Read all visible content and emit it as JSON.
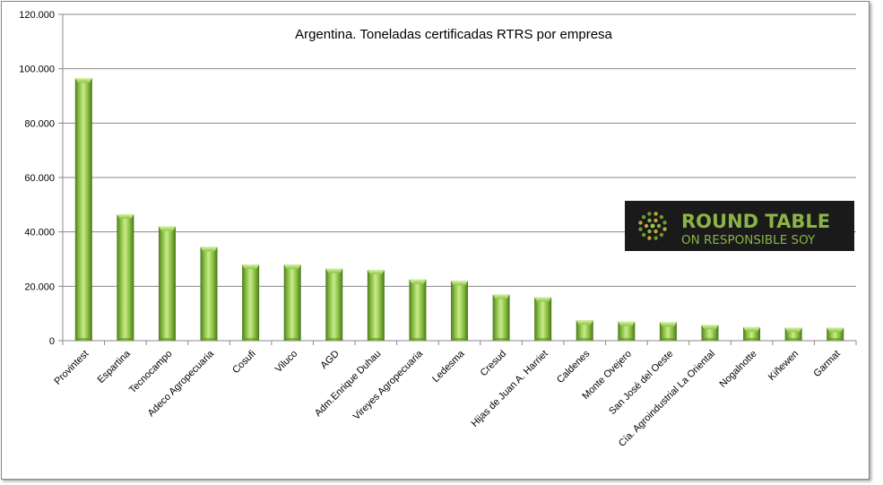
{
  "chart_data": {
    "type": "bar",
    "title": "Argentina. Toneladas certificadas RTRS por empresa",
    "xlabel": "",
    "ylabel": "",
    "ylim": [
      0,
      120000
    ],
    "yticks": [
      0,
      20000,
      40000,
      60000,
      80000,
      100000,
      120000
    ],
    "ytick_labels": [
      "0",
      "20.000",
      "40.000",
      "60.000",
      "80.000",
      "100.000",
      "120.000"
    ],
    "grid": true,
    "legend": "none",
    "bar_color": "#8cc63f",
    "categories": [
      "Provintest",
      "Espartina",
      "Tecnocampo",
      "Adeco Agropecuaria",
      "Cosufi",
      "Viluco",
      "AGD",
      "Adm.Enrique Duhau",
      "Vireyes Agropecuaria",
      "Ledesma",
      "Cresud",
      "Hijas de Juan A. Harriet",
      "Caldenes",
      "Monte Ovejero",
      "San José del Oeste",
      "Cía. Agroindustrial La Oriental",
      "Nogalnotte",
      "Kiñewen",
      "Garmat"
    ],
    "values": [
      96500,
      46500,
      42000,
      34500,
      28000,
      28000,
      26500,
      26000,
      22500,
      22000,
      17000,
      16000,
      7500,
      7000,
      6800,
      5800,
      5000,
      4800,
      4800
    ]
  },
  "logo": {
    "line1": "ROUND TABLE",
    "line2": "ON RESPONSIBLE SOY",
    "bg_color": "#1a1a1a",
    "text_color": "#8ab446"
  }
}
